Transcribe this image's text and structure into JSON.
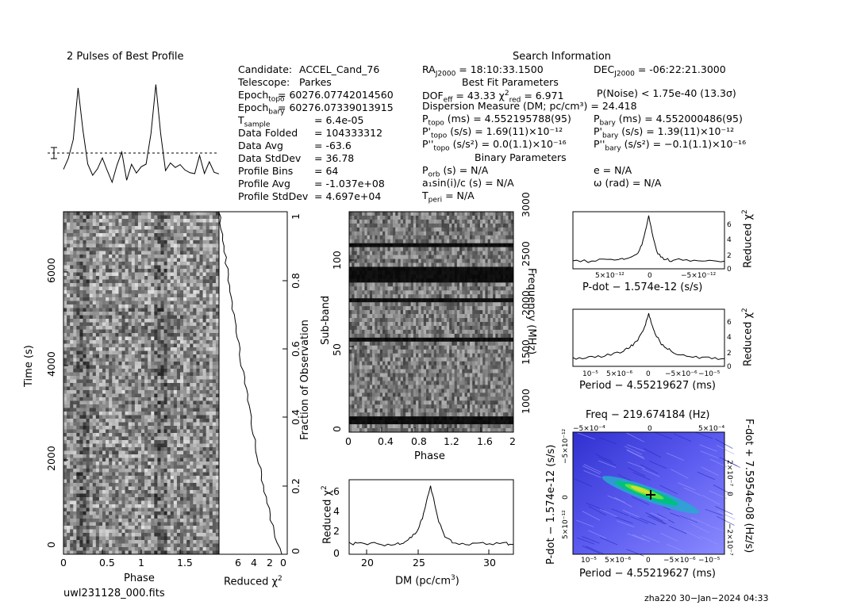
{
  "header": {
    "pulses_title": "2 Pulses of Best Profile",
    "search_title": "Search Information",
    "best_fit_title": "Best Fit Parameters",
    "binary_title": "Binary Parameters"
  },
  "left_info": [
    {
      "label": "Candidate:",
      "value": "ACCEL_Cand_76"
    },
    {
      "label": "Telescope:",
      "value": "Parkes"
    },
    {
      "label": "Epoch_topo",
      "value": "= 60276.07742014560"
    },
    {
      "label": "Epoch_bary",
      "value": "= 60276.07339013915"
    },
    {
      "label": "T_sample",
      "value": "6.4e-05"
    },
    {
      "label": "Data Folded",
      "value": "104333312"
    },
    {
      "label": "Data Avg",
      "value": "-63.6"
    },
    {
      "label": "Data StdDev",
      "value": "36.78"
    },
    {
      "label": "Profile Bins",
      "value": "64"
    },
    {
      "label": "Profile Avg",
      "value": "-1.037e+08"
    },
    {
      "label": "Profile StdDev",
      "value": "4.697e+04"
    }
  ],
  "right_info": {
    "ra": "= 18:10:33.1500",
    "dec": "= -06:22:21.3000",
    "dof": "= 43.33",
    "chi2": "= 6.971",
    "pnoise": "P(Noise) < 1.75e-40   (13.3σ)",
    "dm_line": "Dispersion Measure (DM; pc/cm³) = 24.418",
    "p_topo": "(ms)  =  4.552195788(95)",
    "p_bary": "(ms)  =  4.552000486(95)",
    "pd_topo": "(s/s)  =  1.69(11)×10⁻¹²",
    "pd_bary": "(s/s)  =  1.39(11)×10⁻¹²",
    "pdd_topo": "(s/s²) = 0.0(1.1)×10⁻¹⁶",
    "pdd_bary": "(s/s²) = −0.1(1.1)×10⁻¹⁶",
    "porb": "(s) = N/A",
    "ecc": "e = N/A",
    "asini": "a₁sin(i)/c (s) = N/A",
    "omega": "ω (rad) = N/A",
    "tperi": "= N/A"
  },
  "axes": {
    "time_label": "Time (s)",
    "phase_label": "Phase",
    "redchi_label": "Reduced χ²",
    "frac_label": "Fraction of Observation",
    "subband_label": "Sub-band",
    "freq_label": "Frequency (MHz)",
    "dm_label": "DM (pc/cm³)",
    "pdot_label": "P-dot − 1.574e-12 (s/s)",
    "period_label": "Period − 4.55219627 (ms)",
    "freq_title": "Freq − 219.674184 (Hz)",
    "fdot_label": "F-dot + 7.5954e-08 (Hz/s)",
    "pdot_side_label": "P-dot − 1.574e-12 (s/s)"
  },
  "ticks": {
    "time": [
      "0",
      "2000",
      "4000",
      "6000"
    ],
    "phase_tp": [
      "0",
      "0.5",
      "1",
      "1.5"
    ],
    "redchi_tp": [
      "6",
      "4",
      "2",
      "0"
    ],
    "frac": [
      "0",
      "0.2",
      "0.4",
      "0.6",
      "0.8",
      "1"
    ],
    "subband": [
      "0",
      "50",
      "100"
    ],
    "freq": [
      "1000",
      "1500",
      "2000",
      "2500",
      "3000"
    ],
    "phase_fp": [
      "0",
      "0.4",
      "0.8",
      "1.2",
      "1.6",
      "2"
    ],
    "dm_x": [
      "20",
      "25",
      "30"
    ],
    "dm_y": [
      "0",
      "2",
      "4",
      "6"
    ],
    "pdot_x": [
      "5×10⁻¹²",
      "0",
      "−5×10⁻¹²"
    ],
    "chi_small": [
      "0",
      "2",
      "4",
      "6"
    ],
    "period_x": [
      "10⁻⁵",
      "5×10⁻⁶",
      "0",
      "−5×10⁻⁶",
      "−10⁻⁵"
    ],
    "freq_top": [
      "−5×10⁻⁴",
      "0",
      "5×10⁻⁴"
    ],
    "pdd_left": [
      "−5×10⁻¹²",
      "0",
      "5×10⁻¹²"
    ],
    "fdot_right": [
      "2×10⁻⁷",
      "0",
      "−2×10⁻⁷"
    ]
  },
  "footer": {
    "filename": "uwl231128_000.fits",
    "stamp": "zha220 30−Jan−2024 04:33"
  },
  "chart_data": [
    {
      "type": "line",
      "title": "2 Pulses of Best Profile",
      "x": [
        0,
        0.0625,
        0.125,
        0.1875,
        0.25,
        0.3125,
        0.375,
        0.4375,
        0.5,
        0.5625,
        0.625,
        0.6875,
        0.75,
        0.8125,
        0.875,
        0.9375,
        1,
        1.0625,
        1.125,
        1.1875,
        1.25,
        1.3125,
        1.375,
        1.4375,
        1.5,
        1.5625,
        1.625,
        1.6875,
        1.75,
        1.8125,
        1.875,
        1.9375,
        2
      ],
      "values": [
        0.1,
        0.2,
        0.45,
        0.95,
        0.5,
        0.15,
        0.1,
        0.05,
        0.2,
        0.1,
        0.0,
        0.1,
        0.25,
        0.05,
        0.15,
        0.1,
        0.1,
        0.2,
        0.45,
        0.95,
        0.5,
        0.15,
        0.1,
        0.05,
        0.2,
        0.1,
        0.0,
        0.1,
        0.25,
        0.05,
        0.15,
        0.1,
        0.1
      ]
    },
    {
      "type": "line",
      "xlabel": "DM (pc/cm³)",
      "ylabel": "Reduced χ²",
      "xlim": [
        18.4,
        30.5
      ],
      "ylim": [
        0,
        7.5
      ],
      "x": [
        18.4,
        19,
        20,
        21,
        22,
        22.5,
        23,
        23.5,
        23.8,
        24.1,
        24.4,
        24.7,
        25,
        25.3,
        25.6,
        26,
        27,
        28,
        29,
        30,
        30.5
      ],
      "values": [
        1.2,
        1.0,
        1.1,
        0.9,
        1.1,
        1.3,
        1.8,
        2.5,
        3.7,
        5.3,
        6.9,
        5.0,
        3.3,
        2.2,
        1.6,
        1.3,
        1.0,
        1.1,
        1.0,
        1.1,
        1.0
      ]
    },
    {
      "type": "line",
      "xlabel": "P-dot − 1.574e-12 (s/s)",
      "ylabel": "Reduced χ²",
      "xlim": [
        1e-11,
        -1e-11
      ],
      "ylim": [
        0,
        7.5
      ],
      "x": [
        1e-11,
        8e-12,
        6e-12,
        4e-12,
        3e-12,
        2e-12,
        1.2e-12,
        6e-13,
        0,
        -6e-13,
        -1.2e-12,
        -2e-12,
        -3e-12,
        -4e-12,
        -6e-12,
        -8e-12,
        -1e-11
      ],
      "values": [
        1.1,
        1.0,
        1.2,
        1.2,
        1.3,
        1.6,
        2.4,
        4.2,
        6.9,
        4.0,
        2.0,
        1.3,
        1.1,
        1.2,
        1.0,
        1.1,
        1.0
      ]
    },
    {
      "type": "line",
      "xlabel": "Period − 4.55219627 (ms)",
      "ylabel": "Reduced χ²",
      "xlim": [
        1.2e-05,
        -1.2e-05
      ],
      "ylim": [
        0,
        7.5
      ],
      "x": [
        1.2e-05,
        1e-05,
        8e-06,
        6e-06,
        4e-06,
        3e-06,
        2e-06,
        1e-06,
        5e-07,
        0,
        -5e-07,
        -1e-06,
        -2e-06,
        -3e-06,
        -4e-06,
        -6e-06,
        -8e-06,
        -1e-05,
        -1.2e-05
      ],
      "values": [
        1.0,
        1.1,
        1.3,
        1.5,
        2.0,
        2.5,
        3.2,
        4.5,
        5.6,
        6.9,
        5.4,
        4.3,
        3.0,
        2.3,
        1.8,
        1.4,
        1.2,
        1.1,
        1.0
      ]
    }
  ]
}
